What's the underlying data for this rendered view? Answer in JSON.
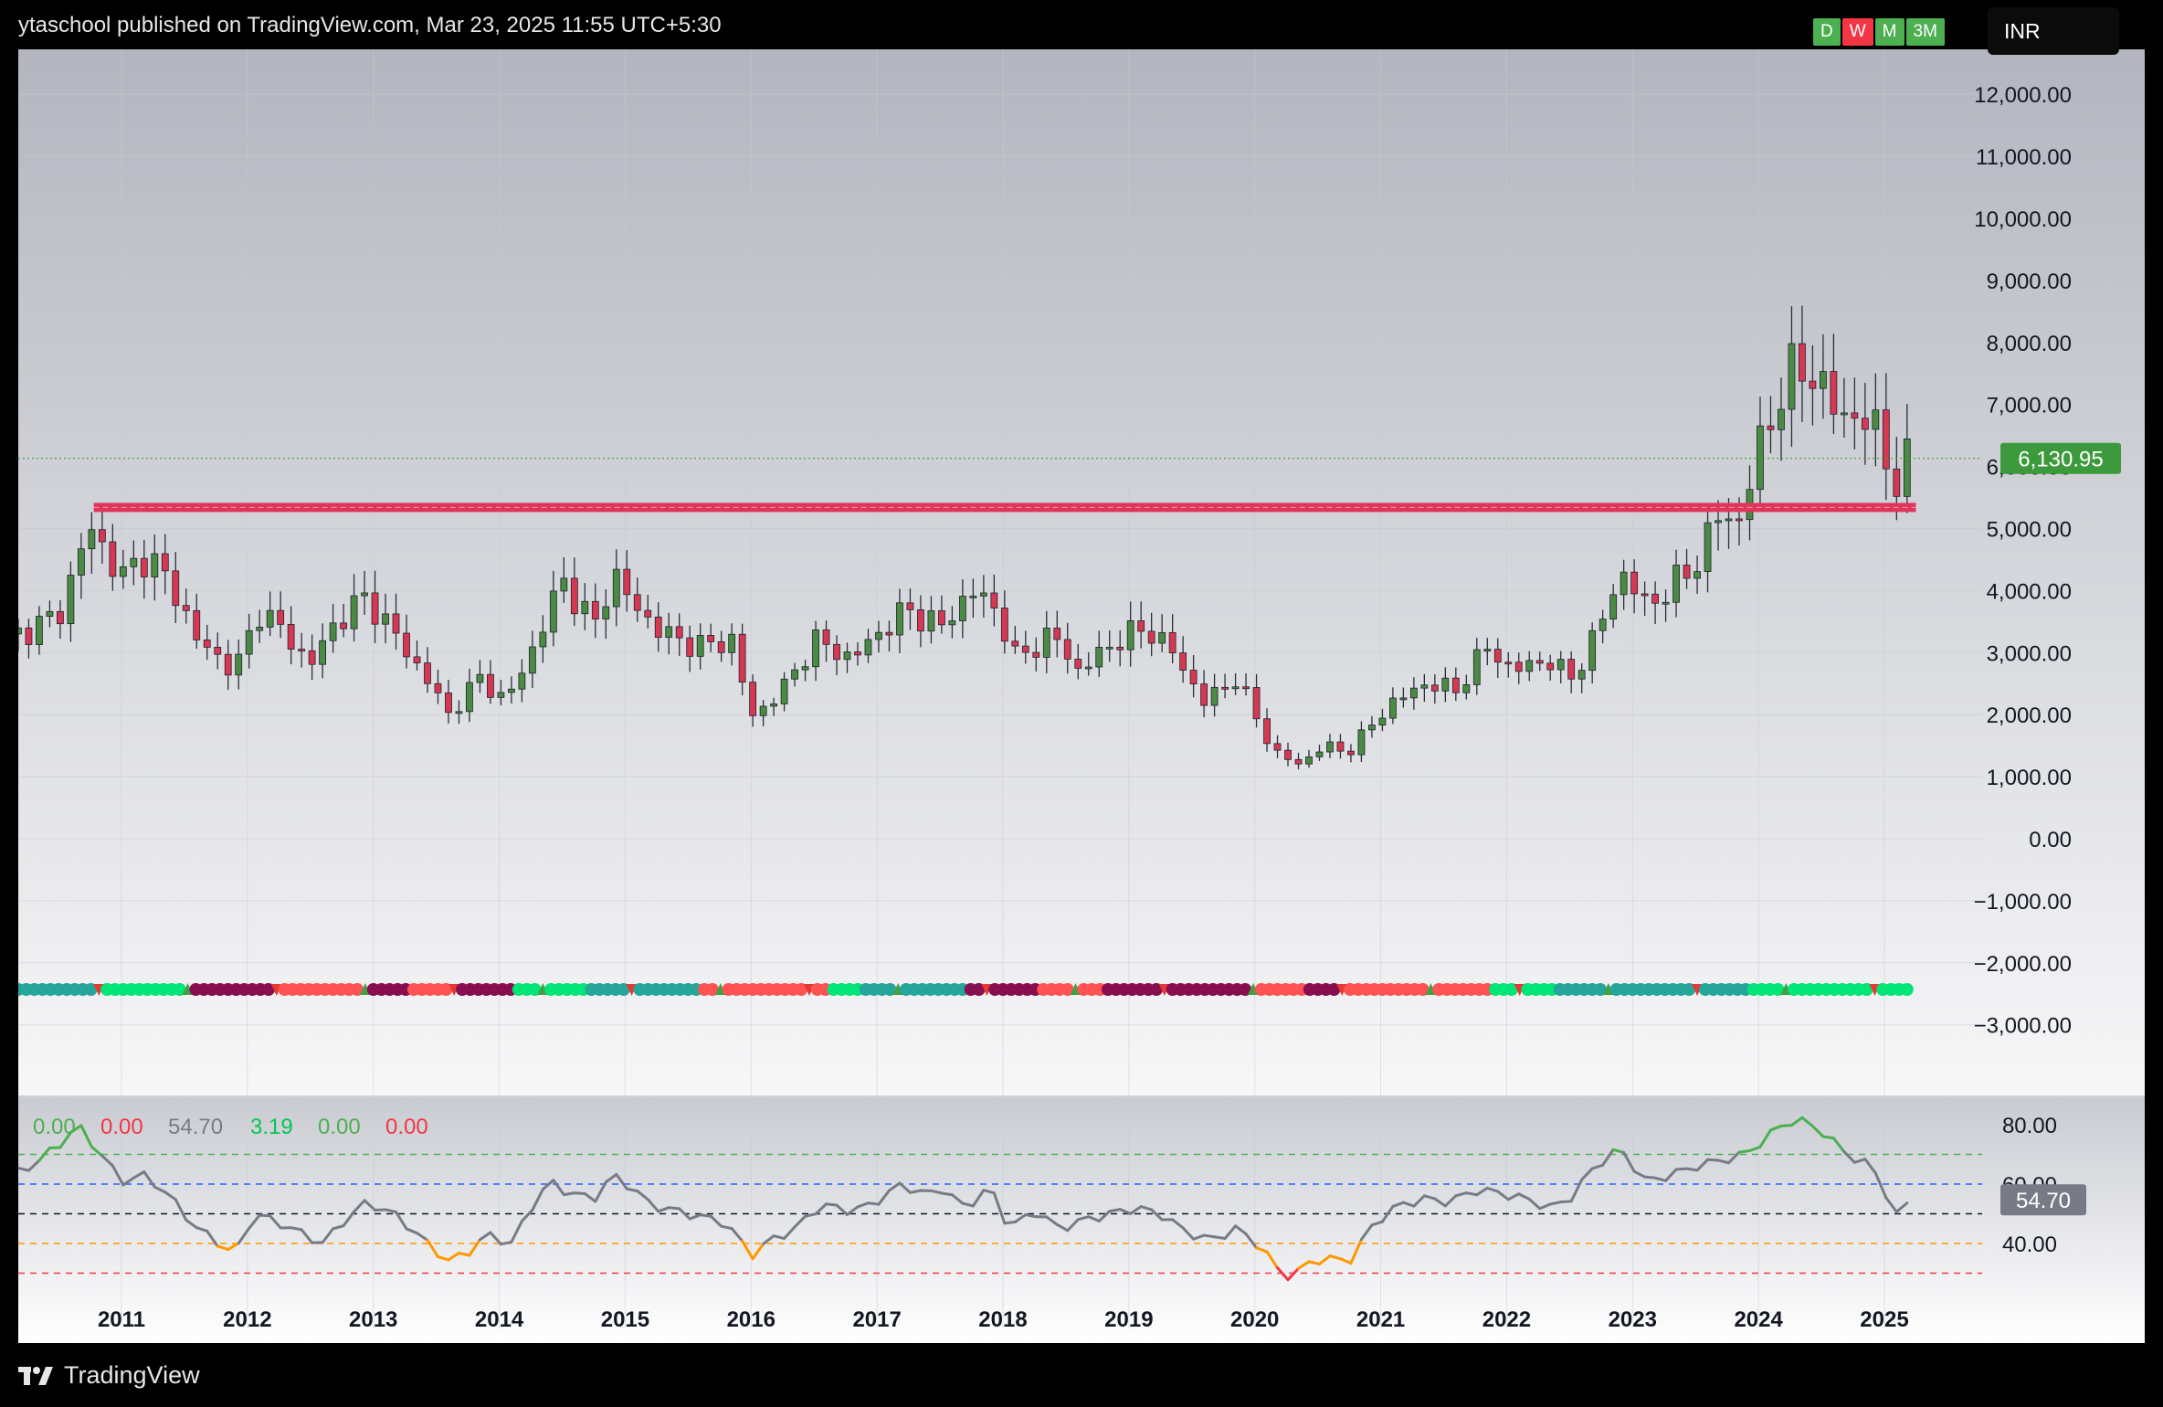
{
  "header": {
    "title": "ytaschool published on TradingView.com, Mar 23, 2025 11:55 UTC+5:30"
  },
  "toolbar": {
    "intervals": [
      {
        "label": "D",
        "color": "#4caf50"
      },
      {
        "label": "W",
        "color": "#f23645"
      },
      {
        "label": "M",
        "color": "#4caf50"
      },
      {
        "label": "3M",
        "color": "#4caf50"
      }
    ],
    "currency": "INR"
  },
  "footer": {
    "brand": "TradingView",
    "logo_icon": "tradingview-logo-icon"
  },
  "colors": {
    "up": "#4a8a42",
    "down": "#d63854",
    "support": "#e0355b",
    "price_badge": "#3c9a3c",
    "rsi_badge": "#787b86",
    "axis_text": "#131722"
  },
  "chart_data": [
    {
      "type": "candlestick",
      "timeframe": "monthly",
      "ylim": [
        -3300,
        12300
      ],
      "y_ticks": [
        "−3,000.00",
        "−2,000.00",
        "−1,000.00",
        "0.00",
        "1,000.00",
        "2,000.00",
        "3,000.00",
        "4,000.00",
        "5,000.00",
        "6,000.00",
        "7,000.00",
        "8,000.00",
        "9,000.00",
        "10,000.00",
        "11,000.00",
        "12,000.00"
      ],
      "x_ticks": [
        "2011",
        "2012",
        "2013",
        "2014",
        "2015",
        "2016",
        "2017",
        "2018",
        "2019",
        "2020",
        "2021",
        "2022",
        "2023",
        "2024",
        "2025"
      ],
      "x_start": 2010.18,
      "x_end": 2025.2,
      "last_price": 6130.95,
      "last_price_label": "6,130.95",
      "support_level": 5340,
      "close_anchors": [
        [
          2010.18,
          3300
        ],
        [
          2010.5,
          3600
        ],
        [
          2010.75,
          5050
        ],
        [
          2010.85,
          4700
        ],
        [
          2011.0,
          4200
        ],
        [
          2011.2,
          4600
        ],
        [
          2011.45,
          3900
        ],
        [
          2011.6,
          3200
        ],
        [
          2011.9,
          2700
        ],
        [
          2012.1,
          3700
        ],
        [
          2012.3,
          3300
        ],
        [
          2012.5,
          2800
        ],
        [
          2012.7,
          3500
        ],
        [
          2012.95,
          3900
        ],
        [
          2013.2,
          3200
        ],
        [
          2013.45,
          2500
        ],
        [
          2013.6,
          2000
        ],
        [
          2013.85,
          2600
        ],
        [
          2014.05,
          2200
        ],
        [
          2014.3,
          3200
        ],
        [
          2014.5,
          4200
        ],
        [
          2014.75,
          3400
        ],
        [
          2014.9,
          4300
        ],
        [
          2015.05,
          3800
        ],
        [
          2015.3,
          3300
        ],
        [
          2015.6,
          3100
        ],
        [
          2015.85,
          3200
        ],
        [
          2016.0,
          1950
        ],
        [
          2016.25,
          2400
        ],
        [
          2016.5,
          3200
        ],
        [
          2016.8,
          2900
        ],
        [
          2017.0,
          3300
        ],
        [
          2017.25,
          3700
        ],
        [
          2017.5,
          3400
        ],
        [
          2017.75,
          4000
        ],
        [
          2017.95,
          3700
        ],
        [
          2018.1,
          2900
        ],
        [
          2018.4,
          3300
        ],
        [
          2018.6,
          2700
        ],
        [
          2018.9,
          3200
        ],
        [
          2019.15,
          3400
        ],
        [
          2019.35,
          3000
        ],
        [
          2019.6,
          2200
        ],
        [
          2019.85,
          2600
        ],
        [
          2020.15,
          1400
        ],
        [
          2020.35,
          1200
        ],
        [
          2020.55,
          1500
        ],
        [
          2020.75,
          1400
        ],
        [
          2020.95,
          1900
        ],
        [
          2021.1,
          2200
        ],
        [
          2021.35,
          2500
        ],
        [
          2021.6,
          2400
        ],
        [
          2021.85,
          3100
        ],
        [
          2022.05,
          2700
        ],
        [
          2022.3,
          2900
        ],
        [
          2022.5,
          2600
        ],
        [
          2022.65,
          3000
        ],
        [
          2022.9,
          4300
        ],
        [
          2023.1,
          3800
        ],
        [
          2023.3,
          4000
        ],
        [
          2023.55,
          4600
        ],
        [
          2023.7,
          5300
        ],
        [
          2023.85,
          5100
        ],
        [
          2024.0,
          6300
        ],
        [
          2024.2,
          7300
        ],
        [
          2024.4,
          7700
        ],
        [
          2024.55,
          7000
        ],
        [
          2024.75,
          6800
        ],
        [
          2024.9,
          6700
        ],
        [
          2025.05,
          6000
        ],
        [
          2025.12,
          5600
        ],
        [
          2025.2,
          6130
        ]
      ]
    },
    {
      "type": "line",
      "indicator_values": [
        "0.00",
        "0.00",
        "54.70",
        "3.19",
        "0.00",
        "0.00"
      ],
      "indicator_colors": [
        "#4caf50",
        "#f23645",
        "#787b86",
        "#00c853",
        "#4caf50",
        "#f23645"
      ],
      "y_ticks": [
        "40.00",
        "60.00",
        "80.00"
      ],
      "ylim": [
        27,
        86
      ],
      "levels": [
        {
          "value": 70,
          "color": "#4caf50"
        },
        {
          "value": 60,
          "color": "#2962ff"
        },
        {
          "value": 50,
          "color": "#131722"
        },
        {
          "value": 40,
          "color": "#ff9800"
        },
        {
          "value": 30,
          "color": "#f23645"
        }
      ],
      "last_value_label": "54.70",
      "anchors": [
        [
          2010.18,
          64
        ],
        [
          2010.35,
          68
        ],
        [
          2010.55,
          75
        ],
        [
          2010.65,
          80
        ],
        [
          2010.8,
          72
        ],
        [
          2011.0,
          61
        ],
        [
          2011.2,
          63
        ],
        [
          2011.4,
          55
        ],
        [
          2011.6,
          45
        ],
        [
          2011.75,
          41
        ],
        [
          2011.9,
          36
        ],
        [
          2012.05,
          50
        ],
        [
          2012.25,
          47
        ],
        [
          2012.45,
          43
        ],
        [
          2012.6,
          40
        ],
        [
          2012.75,
          47
        ],
        [
          2012.95,
          54
        ],
        [
          2013.2,
          49
        ],
        [
          2013.4,
          41
        ],
        [
          2013.6,
          34
        ],
        [
          2013.75,
          37
        ],
        [
          2013.9,
          43
        ],
        [
          2014.1,
          40
        ],
        [
          2014.25,
          52
        ],
        [
          2014.4,
          61
        ],
        [
          2014.55,
          57
        ],
        [
          2014.75,
          55
        ],
        [
          2014.9,
          63
        ],
        [
          2015.05,
          59
        ],
        [
          2015.2,
          53
        ],
        [
          2015.4,
          51
        ],
        [
          2015.6,
          49
        ],
        [
          2015.8,
          47
        ],
        [
          2016.0,
          36
        ],
        [
          2016.15,
          41
        ],
        [
          2016.35,
          45
        ],
        [
          2016.55,
          53
        ],
        [
          2016.8,
          51
        ],
        [
          2016.95,
          53
        ],
        [
          2017.2,
          60
        ],
        [
          2017.4,
          56
        ],
        [
          2017.5,
          59
        ],
        [
          2017.7,
          52
        ],
        [
          2017.9,
          59
        ],
        [
          2018.05,
          45
        ],
        [
          2018.25,
          51
        ],
        [
          2018.45,
          45
        ],
        [
          2018.65,
          48
        ],
        [
          2018.85,
          50
        ],
        [
          2019.05,
          52
        ],
        [
          2019.25,
          50
        ],
        [
          2019.45,
          44
        ],
        [
          2019.65,
          41
        ],
        [
          2019.85,
          45
        ],
        [
          2020.05,
          39
        ],
        [
          2020.2,
          30
        ],
        [
          2020.3,
          29
        ],
        [
          2020.45,
          34
        ],
        [
          2020.55,
          35
        ],
        [
          2020.75,
          34
        ],
        [
          2020.95,
          47
        ],
        [
          2021.15,
          53
        ],
        [
          2021.35,
          55
        ],
        [
          2021.55,
          54
        ],
        [
          2021.75,
          58
        ],
        [
          2021.95,
          57
        ],
        [
          2022.15,
          55
        ],
        [
          2022.35,
          52
        ],
        [
          2022.5,
          55
        ],
        [
          2022.7,
          66
        ],
        [
          2022.9,
          72
        ],
        [
          2023.1,
          61
        ],
        [
          2023.3,
          63
        ],
        [
          2023.5,
          66
        ],
        [
          2023.7,
          68
        ],
        [
          2023.9,
          70
        ],
        [
          2024.1,
          77
        ],
        [
          2024.2,
          80
        ],
        [
          2024.3,
          82
        ],
        [
          2024.5,
          78
        ],
        [
          2024.7,
          70
        ],
        [
          2024.9,
          66
        ],
        [
          2025.0,
          58
        ],
        [
          2025.1,
          49
        ],
        [
          2025.2,
          54.7
        ]
      ]
    },
    {
      "type": "scatter",
      "marker_colors": {
        "strong_up": "#26a69a",
        "up": "#00e676",
        "down": "#ff5252",
        "strong_down": "#880e4f"
      },
      "regimes": [
        [
          2010.18,
          "strong_up"
        ],
        [
          2010.8,
          "up"
        ],
        [
          2011.5,
          "strong_down"
        ],
        [
          2012.2,
          "down"
        ],
        [
          2012.9,
          "strong_down"
        ],
        [
          2013.3,
          "down"
        ],
        [
          2013.7,
          "strong_down"
        ],
        [
          2014.1,
          "up"
        ],
        [
          2014.7,
          "strong_up"
        ],
        [
          2015.6,
          "down"
        ],
        [
          2016.1,
          "down"
        ],
        [
          2016.6,
          "up"
        ],
        [
          2016.9,
          "strong_up"
        ],
        [
          2017.7,
          "strong_down"
        ],
        [
          2018.3,
          "down"
        ],
        [
          2018.8,
          "strong_down"
        ],
        [
          2019.4,
          "strong_down"
        ],
        [
          2019.95,
          "down"
        ],
        [
          2020.4,
          "strong_down"
        ],
        [
          2020.7,
          "down"
        ],
        [
          2021.3,
          "down"
        ],
        [
          2021.9,
          "up"
        ],
        [
          2022.4,
          "strong_up"
        ],
        [
          2023.3,
          "strong_up"
        ],
        [
          2023.9,
          "up"
        ]
      ]
    }
  ]
}
